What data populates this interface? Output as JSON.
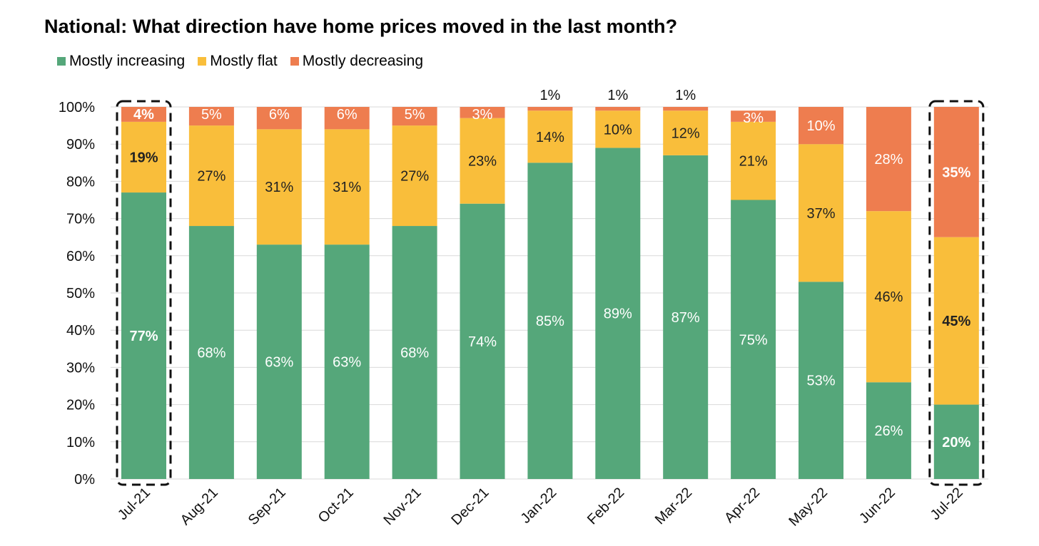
{
  "chart_data": {
    "type": "bar",
    "stacked": true,
    "title": "National: What direction have home prices moved in the last month?",
    "categories": [
      "Jul-21",
      "Aug-21",
      "Sep-21",
      "Oct-21",
      "Nov-21",
      "Dec-21",
      "Jan-22",
      "Feb-22",
      "Mar-22",
      "Apr-22",
      "May-22",
      "Jun-22",
      "Jul-22"
    ],
    "series": [
      {
        "name": "Mostly increasing",
        "color": "#55A77A",
        "values": [
          77,
          68,
          63,
          63,
          68,
          74,
          85,
          89,
          87,
          75,
          53,
          26,
          20
        ],
        "labels": [
          "77%",
          "68%",
          "63%",
          "63%",
          "68%",
          "74%",
          "85%",
          "89%",
          "87%",
          "75%",
          "53%",
          "26%",
          "20%"
        ]
      },
      {
        "name": "Mostly flat",
        "color": "#F9BE3B",
        "values": [
          19,
          27,
          31,
          31,
          27,
          23,
          14,
          10,
          12,
          21,
          37,
          46,
          45
        ],
        "labels": [
          "19%",
          "27%",
          "31%",
          "31%",
          "27%",
          "23%",
          "14%",
          "10%",
          "12%",
          "21%",
          "37%",
          "46%",
          "45%"
        ]
      },
      {
        "name": "Mostly decreasing",
        "color": "#EE7D4F",
        "values": [
          4,
          5,
          6,
          6,
          5,
          3,
          1,
          1,
          1,
          3,
          10,
          28,
          35
        ],
        "labels": [
          "4%",
          "5%",
          "6%",
          "6%",
          "5%",
          "3%",
          "1%",
          "1%",
          "1%",
          "3%",
          "10%",
          "28%",
          "35%"
        ]
      }
    ],
    "ylim": [
      0,
      100
    ],
    "yticks": [
      "0%",
      "10%",
      "20%",
      "30%",
      "40%",
      "50%",
      "60%",
      "70%",
      "80%",
      "90%",
      "100%"
    ],
    "grid": true,
    "legend_position": "top-left",
    "highlighted_categories": [
      "Jul-21",
      "Jul-22"
    ]
  }
}
